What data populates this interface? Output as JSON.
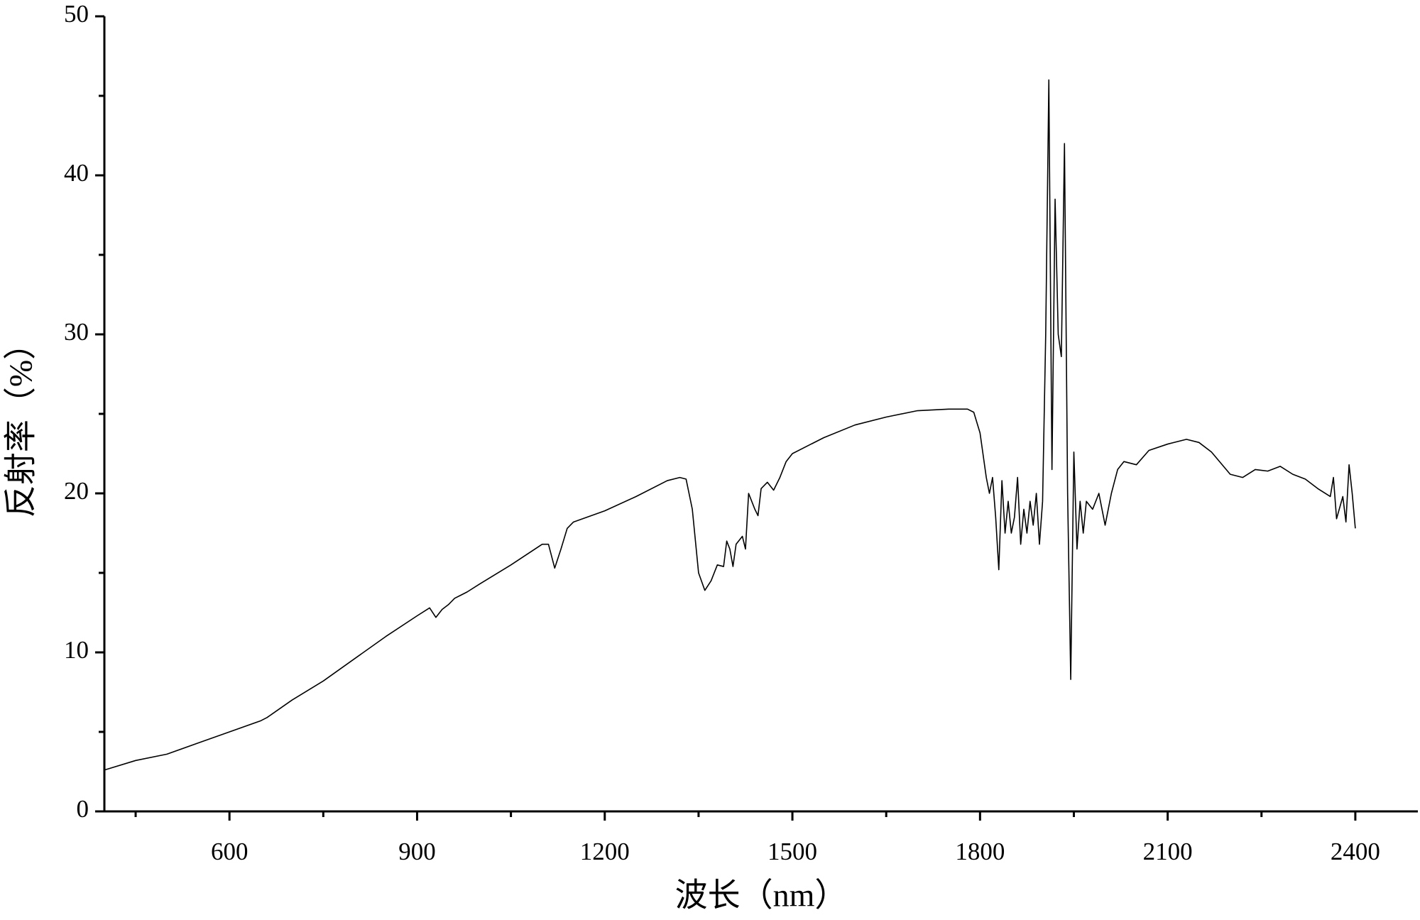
{
  "chart_data": {
    "type": "line",
    "x_label": "波长（nm）",
    "y_label": "反射率（%）",
    "xlim": [
      400,
      2500
    ],
    "ylim": [
      0,
      50
    ],
    "xticks": [
      600,
      900,
      1200,
      1500,
      1800,
      2100,
      2400
    ],
    "xminorticks": [
      450,
      750,
      1050,
      1350,
      1650,
      1950,
      2250
    ],
    "yticks": [
      0,
      10,
      20,
      30,
      40,
      50
    ],
    "yminorticks": [
      5,
      15,
      25,
      35,
      45
    ],
    "grid": false,
    "series": [
      {
        "color": "#000000",
        "x": [
          400,
          450,
          500,
          550,
          600,
          650,
          660,
          700,
          750,
          800,
          850,
          900,
          920,
          930,
          940,
          950,
          960,
          970,
          980,
          1000,
          1050,
          1100,
          1110,
          1120,
          1130,
          1140,
          1150,
          1200,
          1250,
          1300,
          1320,
          1330,
          1340,
          1350,
          1360,
          1370,
          1380,
          1390,
          1395,
          1400,
          1405,
          1410,
          1420,
          1425,
          1430,
          1440,
          1445,
          1450,
          1460,
          1470,
          1480,
          1490,
          1500,
          1550,
          1600,
          1650,
          1700,
          1750,
          1780,
          1790,
          1800,
          1810,
          1815,
          1820,
          1825,
          1830,
          1835,
          1840,
          1845,
          1850,
          1855,
          1860,
          1865,
          1870,
          1875,
          1880,
          1885,
          1890,
          1895,
          1900,
          1905,
          1910,
          1915,
          1920,
          1925,
          1930,
          1935,
          1940,
          1945,
          1950,
          1955,
          1960,
          1965,
          1970,
          1980,
          1990,
          2000,
          2010,
          2020,
          2030,
          2050,
          2070,
          2100,
          2130,
          2150,
          2170,
          2200,
          2220,
          2240,
          2260,
          2280,
          2300,
          2320,
          2340,
          2360,
          2365,
          2370,
          2380,
          2385,
          2390,
          2395,
          2400
        ],
        "values": [
          2.6,
          3.2,
          3.6,
          4.3,
          5.0,
          5.7,
          5.9,
          7.0,
          8.2,
          9.6,
          11.0,
          12.3,
          12.8,
          12.2,
          12.7,
          13.0,
          13.4,
          13.6,
          13.8,
          14.3,
          15.5,
          16.8,
          16.8,
          15.3,
          16.5,
          17.8,
          18.2,
          18.9,
          19.8,
          20.8,
          21.0,
          20.9,
          19.0,
          15.0,
          13.9,
          14.5,
          15.5,
          15.4,
          17.0,
          16.5,
          15.4,
          16.8,
          17.3,
          16.5,
          20.0,
          19.0,
          18.6,
          20.3,
          20.7,
          20.2,
          21.0,
          22.0,
          22.5,
          23.5,
          24.3,
          24.8,
          25.2,
          25.3,
          25.3,
          25.1,
          23.8,
          21.0,
          20.0,
          21.0,
          18.5,
          15.2,
          20.8,
          17.5,
          19.5,
          17.5,
          18.5,
          21.0,
          16.8,
          19.0,
          17.5,
          19.5,
          18.0,
          20.0,
          16.8,
          19.5,
          30.0,
          46.0,
          21.5,
          38.5,
          30.0,
          28.6,
          42.0,
          20.0,
          8.3,
          22.6,
          16.5,
          19.5,
          17.5,
          19.5,
          19.0,
          20.0,
          18.0,
          20.0,
          21.5,
          22.0,
          21.8,
          22.7,
          23.1,
          23.4,
          23.2,
          22.6,
          21.2,
          21.0,
          21.5,
          21.4,
          21.7,
          21.2,
          20.9,
          20.3,
          19.8,
          21.0,
          18.4,
          19.8,
          18.2,
          21.8,
          20.0,
          17.8
        ]
      }
    ]
  }
}
